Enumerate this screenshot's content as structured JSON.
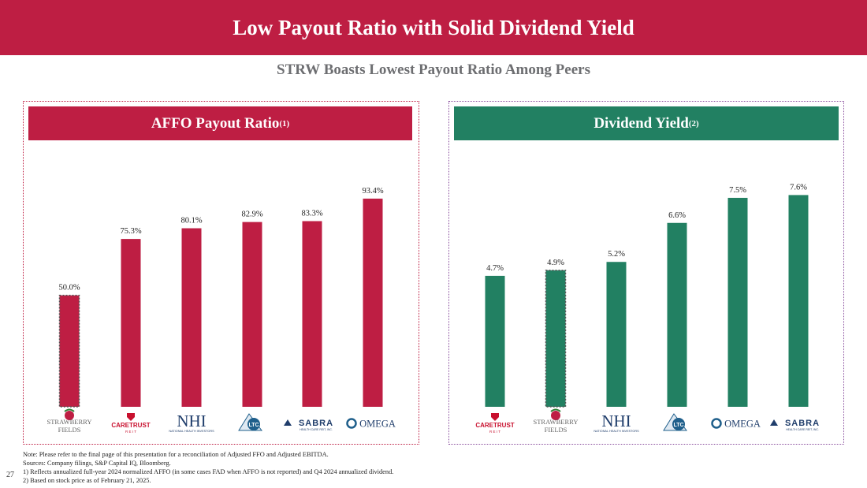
{
  "header": {
    "title": "Low Payout Ratio with Solid Dividend Yield"
  },
  "subtitle": "STRW Boasts Lowest Payout Ratio Among Peers",
  "colors": {
    "brand_red": "#be1e43",
    "brand_green": "#228062",
    "strw_border": "#555555"
  },
  "left_panel": {
    "title": "AFFO Payout Ratio",
    "note_ref": "(1)"
  },
  "right_panel": {
    "title": "Dividend Yield",
    "note_ref": "(2)"
  },
  "chart_data": [
    {
      "type": "bar",
      "title": "AFFO Payout Ratio(1)",
      "categories": [
        "Strawberry Fields",
        "CareTrust REIT",
        "NHI",
        "LTC",
        "Sabra",
        "Omega"
      ],
      "values": [
        50.0,
        75.3,
        80.1,
        82.9,
        83.3,
        93.4
      ],
      "value_labels": [
        "50.0%",
        "75.3%",
        "80.1%",
        "82.9%",
        "83.3%",
        "93.4%"
      ],
      "highlight_index": 0,
      "color": "#be1e43",
      "ylim": [
        0,
        110
      ],
      "grid": false
    },
    {
      "type": "bar",
      "title": "Dividend Yield(2)",
      "categories": [
        "CareTrust REIT",
        "Strawberry Fields",
        "NHI",
        "LTC",
        "Omega",
        "Sabra"
      ],
      "values": [
        4.7,
        4.9,
        5.2,
        6.6,
        7.5,
        7.6
      ],
      "value_labels": [
        "4.7%",
        "4.9%",
        "5.2%",
        "6.6%",
        "7.5%",
        "7.6%"
      ],
      "highlight_index": 1,
      "color": "#228062",
      "ylim": [
        0,
        8.8
      ],
      "grid": false
    }
  ],
  "logos": {
    "strawberry": {
      "line1": "STRAWBERRY",
      "line2": "FIELDS"
    },
    "caretrust": {
      "line1": "CARETRUST",
      "line2": "R E I T"
    },
    "nhi": {
      "line1": "NHI",
      "line2": "NATIONAL HEALTH INVESTORS"
    },
    "ltc": {
      "text": "LTC"
    },
    "sabra": {
      "line1": "SABRA",
      "line2": "HEALTH CARE REIT, INC."
    },
    "omega": {
      "text": "OMEGA"
    }
  },
  "footnotes": [
    "Note: Please refer to the final page of this presentation for a reconciliation of Adjusted FFO and Adjusted EBITDA.",
    "Sources: Company filings, S&P Capital IQ, Bloomberg.",
    "1) Reflects annualized full-year 2024 normalized AFFO (in some cases FAD when AFFO is not reported) and Q4 2024 annualized dividend.",
    "2) Based on stock price as of February 21, 2025."
  ],
  "page_number": "27"
}
